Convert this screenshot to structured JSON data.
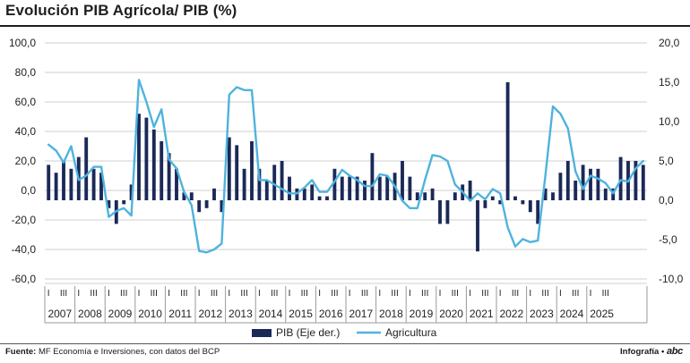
{
  "header": {
    "title": "Evolución PIB Agrícola/ PIB (%)"
  },
  "footer": {
    "source_label": "Fuente:",
    "source_text": "MF Economía e Inversiones, con datos del BCP",
    "credit_label": "Infografía •",
    "credit_brand": "abc"
  },
  "colors": {
    "bar": "#1b2957",
    "line": "#4fb3de",
    "grid": "#cfcfcf",
    "axis": "#444444"
  },
  "chart_data": {
    "type": "bar",
    "title": "Evolución PIB Agrícola/ PIB (%)",
    "xlabel": "",
    "ylabel_left": "",
    "ylabel_right": "",
    "left_axis": {
      "min": -60,
      "max": 100,
      "step": 20,
      "ticks": [
        "100,0",
        "80,0",
        "60,0",
        "40,0",
        "20,0",
        "0,0",
        "-20,0",
        "-40,0",
        "-60,0"
      ]
    },
    "right_axis": {
      "min": -10,
      "max": 20,
      "step": 5,
      "ticks": [
        "20,0",
        "15,0",
        "10,0",
        "5,0",
        "0,0",
        "-5,0",
        "-10,0"
      ]
    },
    "quarter_labels": [
      "I",
      "II",
      "III",
      "IV"
    ],
    "years": [
      "2007",
      "2008",
      "2009",
      "2010",
      "2011",
      "2012",
      "2013",
      "2014",
      "2015",
      "2016",
      "2017",
      "2018",
      "2019",
      "2020",
      "2021",
      "2022",
      "2023",
      "2024",
      "2025"
    ],
    "legend": [
      "PIB (Eje der.)",
      "Agricultura"
    ],
    "legend_position": "bottom-center",
    "series": [
      {
        "name": "PIB (Eje der.)",
        "kind": "bar",
        "axis": "right",
        "values": [
          4.5,
          3.5,
          5.0,
          4.0,
          5.5,
          8.0,
          4.0,
          3.5,
          -1.0,
          -3.0,
          -0.5,
          2.0,
          11.0,
          10.5,
          9.0,
          7.5,
          6.0,
          4.0,
          1.0,
          1.0,
          -1.5,
          -1.0,
          1.5,
          -1.5,
          8.0,
          7.0,
          4.0,
          7.5,
          4.0,
          2.5,
          4.5,
          5.0,
          3.0,
          1.5,
          1.5,
          2.0,
          0.5,
          0.5,
          4.0,
          3.0,
          3.0,
          3.0,
          2.5,
          6.0,
          3.0,
          3.0,
          3.5,
          5.0,
          3.0,
          1.0,
          1.0,
          1.5,
          -3.0,
          -3.0,
          1.0,
          2.0,
          2.5,
          -6.5,
          -1.0,
          0.5,
          -0.5,
          15.0,
          0.5,
          -0.5,
          -1.5,
          -3.0,
          1.5,
          1.0,
          3.5,
          5.0,
          2.5,
          4.5,
          4.0,
          4.0,
          1.5,
          1.5,
          5.5,
          5.0,
          5.0,
          4.5
        ]
      },
      {
        "name": "Agricultura",
        "kind": "line",
        "axis": "left",
        "values": [
          31,
          27,
          19,
          30,
          7,
          10,
          16,
          16,
          -18,
          -14,
          -12,
          -17,
          75,
          60,
          43,
          55,
          21,
          15,
          -1,
          -10,
          -41,
          -42,
          -40,
          -36,
          65,
          70,
          68,
          68,
          7,
          7,
          4,
          1,
          -2,
          -2,
          2,
          7,
          -1,
          -1,
          6,
          14,
          10,
          7,
          3,
          3,
          11,
          10,
          3,
          -7,
          -12,
          -12,
          7,
          24,
          23,
          20,
          4,
          -1,
          -7,
          -2,
          -6,
          1,
          -2,
          -25,
          -38,
          -33,
          -35,
          -34,
          10,
          57,
          52,
          42,
          13,
          1,
          10,
          8,
          5,
          -2,
          7,
          6,
          15,
          20
        ]
      }
    ]
  }
}
